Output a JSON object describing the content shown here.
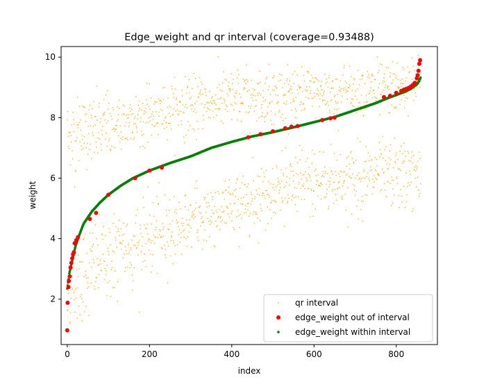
{
  "chart_data": {
    "type": "scatter",
    "title": "Edge_weight and qr interval (coverage=0.93488)",
    "xlabel": "index",
    "ylabel": "weight",
    "xlim": [
      -15,
      900
    ],
    "ylim": [
      0.5,
      10.35
    ],
    "xticks": [
      0,
      200,
      400,
      600,
      800
    ],
    "yticks": [
      2,
      4,
      6,
      8,
      10
    ],
    "n_points": 860,
    "legend_position": "lower-right",
    "colors": {
      "qr": "#ffa500",
      "out": "#ff0000",
      "within": "#008000"
    },
    "series": [
      {
        "name": "qr interval",
        "kind": "band",
        "description": "lower and upper quantile points per index",
        "lower_curve": {
          "x": [
            0,
            20,
            50,
            100,
            200,
            300,
            400,
            500,
            600,
            700,
            800,
            855
          ],
          "y": [
            1.9,
            2.6,
            3.0,
            3.4,
            4.0,
            4.6,
            5.1,
            5.6,
            5.9,
            6.0,
            6.1,
            6.1
          ]
        },
        "upper_curve": {
          "x": [
            0,
            50,
            100,
            200,
            300,
            400,
            500,
            600,
            700,
            800,
            855
          ],
          "y": [
            7.3,
            7.5,
            7.7,
            8.1,
            8.4,
            8.6,
            8.7,
            8.8,
            8.9,
            9.0,
            9.1
          ]
        }
      },
      {
        "name": "edge_weight out of interval",
        "kind": "points",
        "x": [
          0,
          1,
          3,
          4,
          6,
          8,
          10,
          12,
          14,
          16,
          18,
          22,
          26,
          55,
          70,
          100,
          165,
          200,
          230,
          440,
          470,
          500,
          530,
          545,
          560,
          620,
          640,
          650,
          770,
          785,
          800,
          812,
          818,
          824,
          830,
          835,
          840,
          845,
          850,
          852,
          854,
          856,
          858
        ],
        "y": [
          0.97,
          1.88,
          2.4,
          2.6,
          2.75,
          3.05,
          3.2,
          3.35,
          3.48,
          3.55,
          3.85,
          3.95,
          4.05,
          4.65,
          4.85,
          5.45,
          6.0,
          6.25,
          6.35,
          7.35,
          7.45,
          7.55,
          7.65,
          7.7,
          7.72,
          7.92,
          7.98,
          8.0,
          8.68,
          8.72,
          8.82,
          8.88,
          8.92,
          8.95,
          8.98,
          9.02,
          9.08,
          9.15,
          9.3,
          9.4,
          9.55,
          9.78,
          9.9
        ]
      },
      {
        "name": "edge_weight within interval",
        "kind": "curve",
        "x": [
          0,
          2,
          5,
          10,
          15,
          20,
          30,
          40,
          60,
          80,
          100,
          130,
          160,
          200,
          250,
          300,
          350,
          400,
          450,
          500,
          550,
          600,
          650,
          700,
          750,
          780,
          800,
          820,
          835,
          845,
          850,
          855,
          860
        ],
        "y": [
          2.35,
          2.55,
          2.85,
          3.15,
          3.45,
          3.75,
          4.15,
          4.5,
          4.9,
          5.2,
          5.45,
          5.75,
          6.0,
          6.25,
          6.5,
          6.72,
          7.0,
          7.2,
          7.38,
          7.52,
          7.68,
          7.85,
          8.02,
          8.25,
          8.48,
          8.65,
          8.75,
          8.85,
          8.95,
          9.05,
          9.1,
          9.2,
          9.35
        ]
      }
    ]
  }
}
